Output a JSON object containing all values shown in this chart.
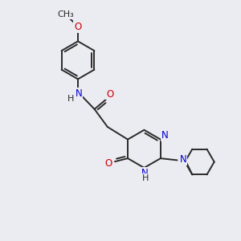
{
  "background_color": "#ebebf2",
  "bond_color": "#2a2a2a",
  "nitrogen_color": "#0000cc",
  "oxygen_color": "#cc0000",
  "line_width": 1.4,
  "figsize": [
    3.0,
    3.0
  ],
  "dpi": 100,
  "xlim": [
    0,
    10
  ],
  "ylim": [
    0,
    10
  ]
}
